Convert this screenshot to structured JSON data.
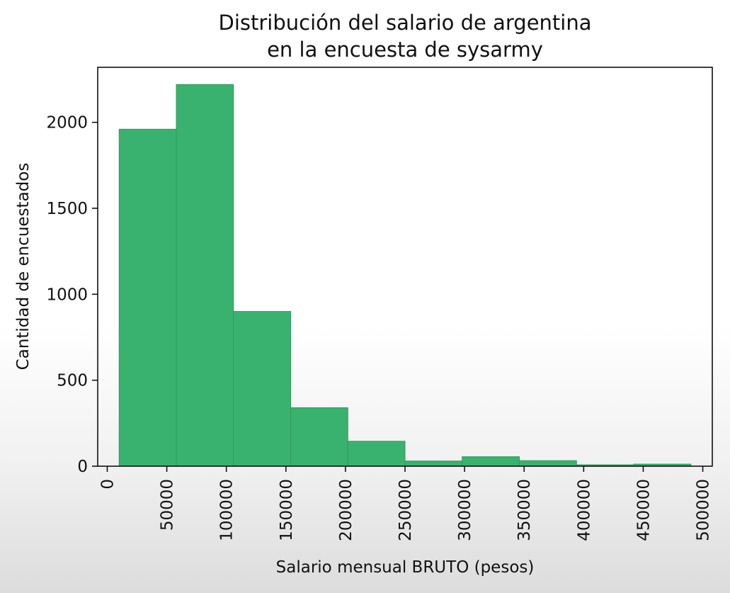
{
  "chart_data": {
    "type": "bar",
    "title": [
      "Distribución del salario de argentina",
      "en la encuesta de sysarmy"
    ],
    "xlabel": "Salario mensual BRUTO (pesos)",
    "ylabel": "Cantidad de encuestados",
    "xlim": [
      -8000,
      508000
    ],
    "ylim": [
      0,
      2320
    ],
    "x_ticks": [
      0,
      50000,
      100000,
      150000,
      200000,
      250000,
      300000,
      350000,
      400000,
      450000,
      500000
    ],
    "y_ticks": [
      0,
      500,
      1000,
      1500,
      2000
    ],
    "bin_edges": [
      10000,
      58000,
      106000,
      154000,
      202000,
      250000,
      298000,
      346000,
      394000,
      442000,
      490000
    ],
    "values": [
      1960,
      2220,
      900,
      340,
      145,
      30,
      55,
      32,
      8,
      12
    ],
    "color": "#3ab26f",
    "grid": false,
    "legend": "none"
  }
}
